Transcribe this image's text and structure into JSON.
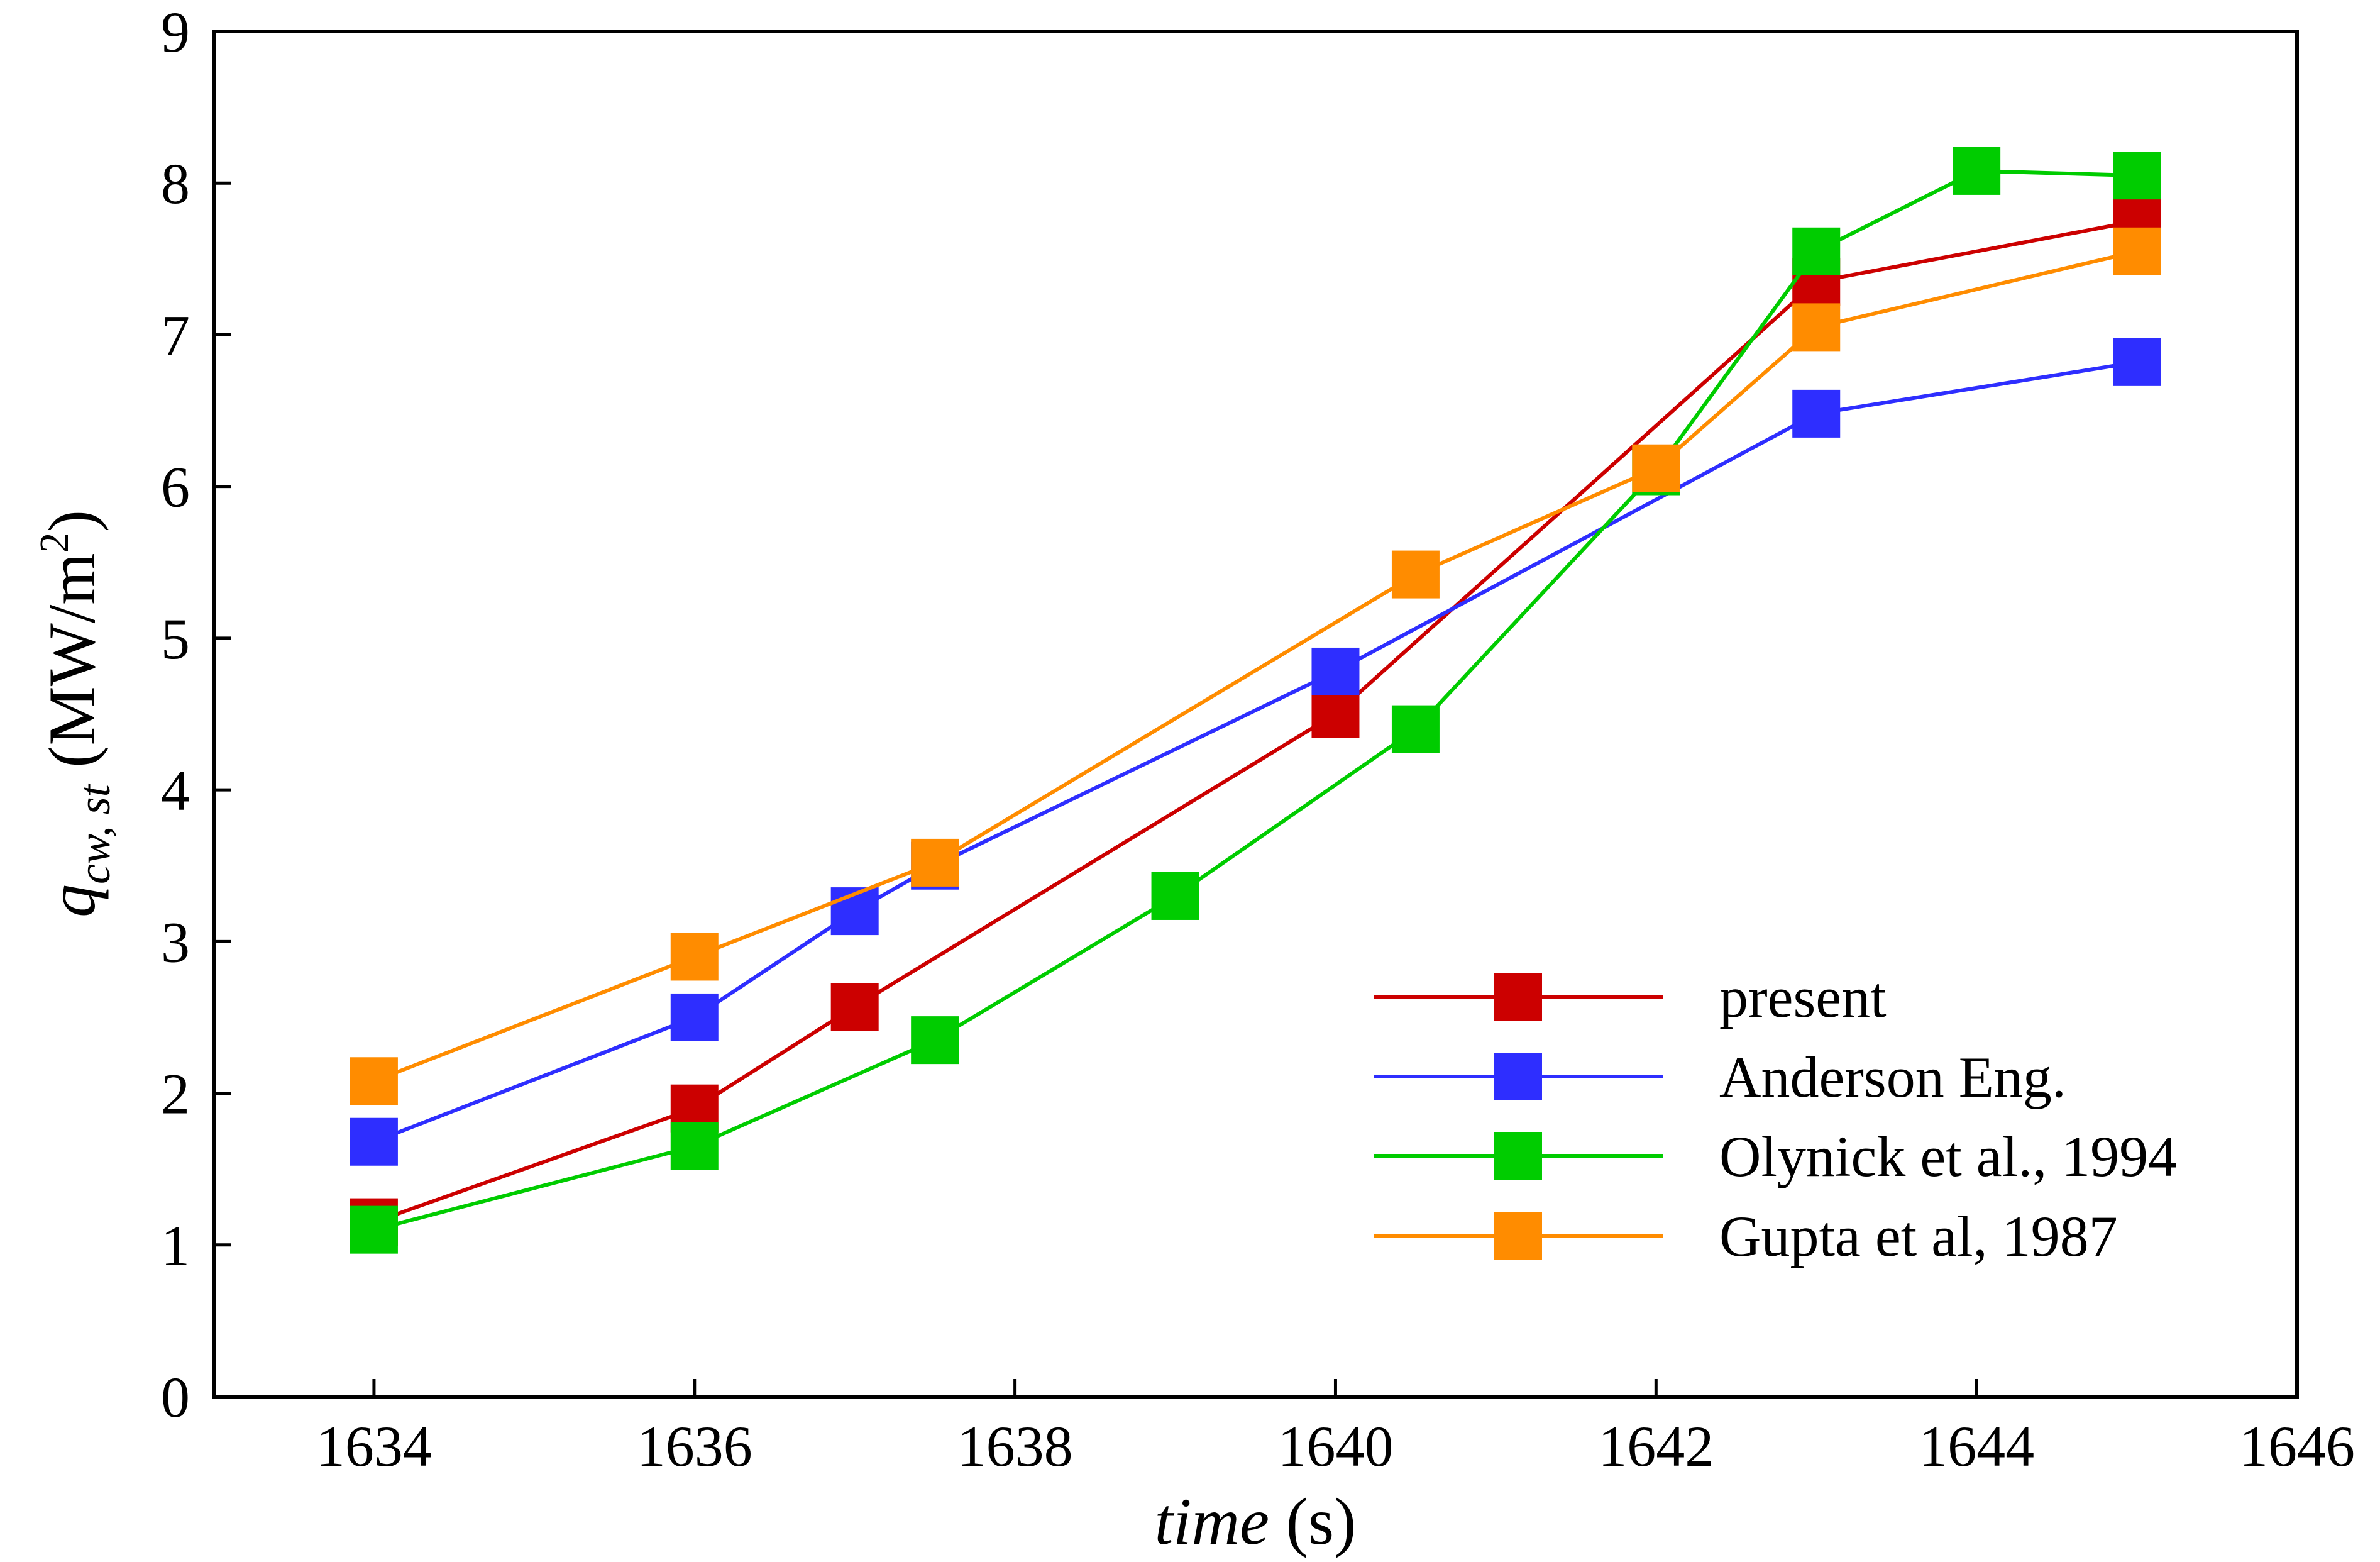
{
  "chart_data": {
    "type": "line",
    "xlabel": {
      "italic": "time",
      "unit": "(s)"
    },
    "ylabel": {
      "symbol": "q",
      "subscript": "cw, st",
      "unit_prefix": "(MW/m",
      "unit_sup": "2",
      "unit_suffix": ")"
    },
    "xlim": [
      1633,
      1646
    ],
    "ylim": [
      0,
      9
    ],
    "xticks": [
      "1634",
      "1636",
      "1638",
      "1640",
      "1642",
      "1644",
      "1646"
    ],
    "yticks": [
      "0",
      "1",
      "2",
      "3",
      "4",
      "5",
      "6",
      "7",
      "8",
      "9"
    ],
    "grid": false,
    "legend_position": "lower-right",
    "series": [
      {
        "name": "present",
        "color": "#CC0000",
        "x": [
          1634,
          1636,
          1637,
          1640,
          1643,
          1645
        ],
        "y": [
          1.15,
          1.9,
          2.57,
          4.5,
          7.35,
          7.75
        ]
      },
      {
        "name": "Anderson Eng.",
        "color": "#2E2EFF",
        "x": [
          1634,
          1636,
          1637,
          1637.5,
          1640,
          1643,
          1645
        ],
        "y": [
          1.68,
          2.5,
          3.2,
          3.5,
          4.78,
          6.48,
          6.82
        ]
      },
      {
        "name": "Olynick et al., 1994",
        "color": "#00CC00",
        "x": [
          1634,
          1636,
          1637.5,
          1639,
          1640.5,
          1642,
          1643,
          1644,
          1645
        ],
        "y": [
          1.1,
          1.65,
          2.35,
          3.3,
          4.4,
          6.1,
          7.55,
          8.08,
          8.05
        ]
      },
      {
        "name": "Gupta et al, 1987",
        "color": "#FF8C00",
        "x": [
          1634,
          1636,
          1637.5,
          1640.5,
          1642,
          1643,
          1645
        ],
        "y": [
          2.08,
          2.9,
          3.52,
          5.42,
          6.12,
          7.05,
          7.55
        ]
      }
    ]
  }
}
